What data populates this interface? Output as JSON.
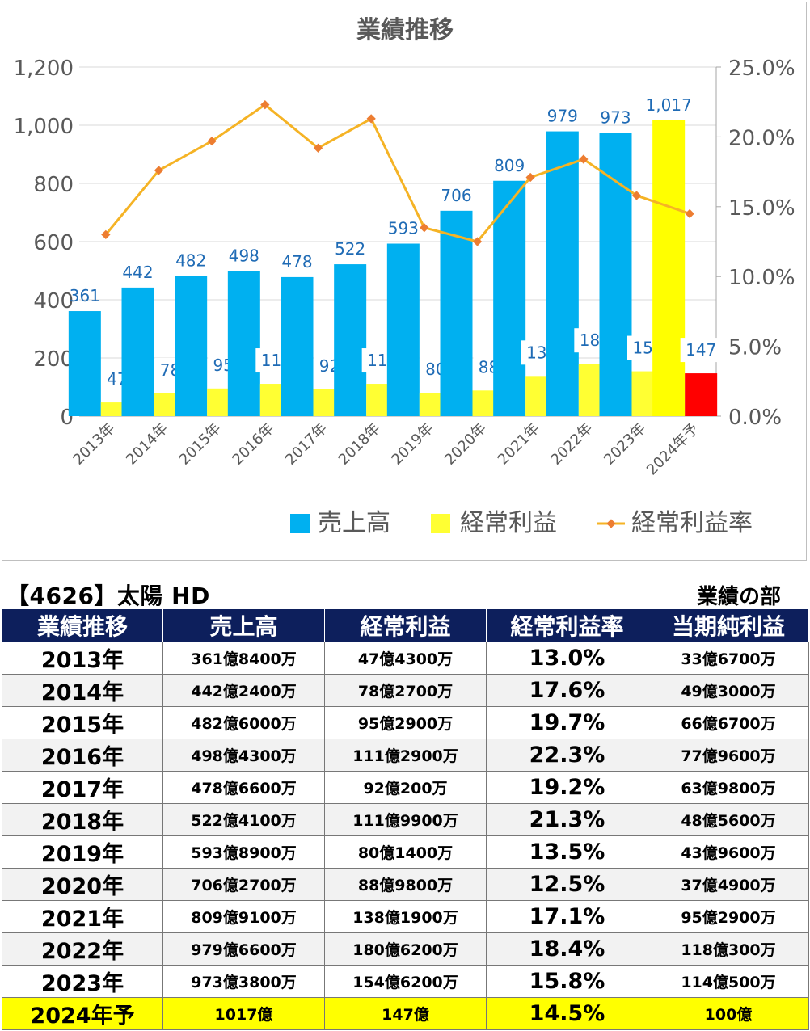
{
  "chart_data": {
    "type": "bar",
    "title": "業績推移",
    "categories": [
      "2013年",
      "2014年",
      "2015年",
      "2016年",
      "2017年",
      "2018年",
      "2019年",
      "2020年",
      "2021年",
      "2022年",
      "2023年",
      "2024年予"
    ],
    "series": [
      {
        "name": "売上高",
        "kind": "bar",
        "axis": "left",
        "color": "#00b0f0",
        "values": [
          361,
          442,
          482,
          498,
          478,
          522,
          593,
          706,
          809,
          979,
          973,
          1017
        ],
        "labels": [
          "361",
          "442",
          "482",
          "498",
          "478",
          "522",
          "593",
          "706",
          "809",
          "979",
          "973",
          "1,017"
        ],
        "highlight_last_color": "#ffff00"
      },
      {
        "name": "経常利益",
        "kind": "bar",
        "axis": "left",
        "color": "#ffff33",
        "values": [
          47,
          78,
          95,
          111,
          92,
          111,
          80,
          88,
          138,
          180,
          154,
          147
        ],
        "labels": [
          "47",
          "78",
          "95",
          "111",
          "92",
          "111",
          "80",
          "88",
          "138",
          "180",
          "154",
          "147"
        ],
        "highlight_last_color": "#ff0000"
      },
      {
        "name": "経常利益率",
        "kind": "line",
        "axis": "right",
        "color": "#f5b325",
        "marker_color": "#ed7d31",
        "values": [
          13.0,
          17.6,
          19.7,
          22.3,
          19.2,
          21.3,
          13.5,
          12.5,
          17.1,
          18.4,
          15.8,
          14.5
        ]
      }
    ],
    "y_left": {
      "min": 0,
      "max": 1200,
      "ticks": [
        "0",
        "200",
        "400",
        "600",
        "800",
        "1,000",
        "1,200"
      ]
    },
    "y_right": {
      "min": 0,
      "max": 25,
      "ticks": [
        "0.0%",
        "5.0%",
        "10.0%",
        "15.0%",
        "20.0%",
        "25.0%"
      ]
    },
    "grid": true,
    "legend_position": "bottom",
    "data_label_color": "#1f6bb5"
  },
  "stock_title": "【4626】太陽 HD",
  "section_label": "業績の部",
  "table": {
    "headers": [
      "業績推移",
      "売上高",
      "経常利益",
      "経常利益率",
      "当期純利益"
    ],
    "rows": [
      {
        "year": "2013年",
        "sales": "361億8400万",
        "ordinary_profit": "47億4300万",
        "margin": "13.0%",
        "net_profit": "33億6700万"
      },
      {
        "year": "2014年",
        "sales": "442億2400万",
        "ordinary_profit": "78億2700万",
        "margin": "17.6%",
        "net_profit": "49億3000万"
      },
      {
        "year": "2015年",
        "sales": "482億6000万",
        "ordinary_profit": "95億2900万",
        "margin": "19.7%",
        "net_profit": "66億6700万"
      },
      {
        "year": "2016年",
        "sales": "498億4300万",
        "ordinary_profit": "111億2900万",
        "margin": "22.3%",
        "net_profit": "77億9600万"
      },
      {
        "year": "2017年",
        "sales": "478億6600万",
        "ordinary_profit": "92億200万",
        "margin": "19.2%",
        "net_profit": "63億9800万"
      },
      {
        "year": "2018年",
        "sales": "522億4100万",
        "ordinary_profit": "111億9900万",
        "margin": "21.3%",
        "net_profit": "48億5600万"
      },
      {
        "year": "2019年",
        "sales": "593億8900万",
        "ordinary_profit": "80億1400万",
        "margin": "13.5%",
        "net_profit": "43億9600万"
      },
      {
        "year": "2020年",
        "sales": "706億2700万",
        "ordinary_profit": "88億9800万",
        "margin": "12.5%",
        "net_profit": "37億4900万"
      },
      {
        "year": "2021年",
        "sales": "809億9100万",
        "ordinary_profit": "138億1900万",
        "margin": "17.1%",
        "net_profit": "95億2900万"
      },
      {
        "year": "2022年",
        "sales": "979億6600万",
        "ordinary_profit": "180億6200万",
        "margin": "18.4%",
        "net_profit": "118億300万"
      },
      {
        "year": "2023年",
        "sales": "973億3800万",
        "ordinary_profit": "154億6200万",
        "margin": "15.8%",
        "net_profit": "114億500万"
      },
      {
        "year": "2024年予",
        "sales": "1017億",
        "ordinary_profit": "147億",
        "margin": "14.5%",
        "net_profit": "100億",
        "forecast": true
      }
    ]
  }
}
